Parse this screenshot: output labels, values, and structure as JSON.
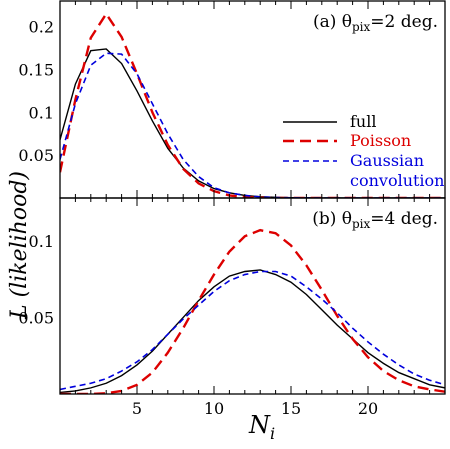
{
  "chart_data": [
    {
      "type": "line",
      "panel_label": "(a) θ",
      "panel_label_sub": "pix",
      "panel_label_tail": "=2 deg.",
      "xlim": [
        0,
        25
      ],
      "ylim": [
        0,
        0.23
      ],
      "yticks": [
        0.05,
        0.1,
        0.15,
        0.2
      ],
      "ytick_labels": [
        "0.05",
        "0.1",
        "0.15",
        "0.2"
      ],
      "legend_position": "right",
      "series": [
        {
          "name": "full",
          "color": "#000000",
          "style": "solid",
          "x": [
            0,
            1,
            2,
            3,
            4,
            5,
            6,
            7,
            8,
            9,
            10,
            11,
            12,
            13,
            14,
            15,
            16,
            17,
            18,
            19,
            20,
            21,
            22,
            23,
            24,
            25
          ],
          "y": [
            0.068,
            0.133,
            0.172,
            0.174,
            0.157,
            0.125,
            0.09,
            0.058,
            0.035,
            0.02,
            0.011,
            0.006,
            0.003,
            0.0015,
            0.0008,
            0.0004,
            0.0002,
            0.0001,
            0.0001,
            0,
            0,
            0,
            0,
            0,
            0,
            0
          ]
        },
        {
          "name": "Poisson",
          "color": "#dd0000",
          "style": "long-dash",
          "x": [
            0,
            1,
            2,
            3,
            4,
            5,
            6,
            7,
            8,
            9,
            10,
            11,
            12,
            13,
            14,
            15,
            16,
            17,
            18,
            19,
            20,
            21,
            22,
            23,
            24,
            25
          ],
          "y": [
            0.03,
            0.115,
            0.187,
            0.215,
            0.188,
            0.145,
            0.1,
            0.062,
            0.034,
            0.017,
            0.008,
            0.003,
            0.001,
            0.0004,
            0.0001,
            0,
            0,
            0,
            0,
            0,
            0,
            0,
            0,
            0,
            0,
            0
          ]
        },
        {
          "name": "Gaussian convolution",
          "color": "#0000dd",
          "style": "short-dash",
          "x": [
            0,
            1,
            2,
            3,
            4,
            5,
            6,
            7,
            8,
            9,
            10,
            11,
            12,
            13,
            14,
            15,
            16,
            17,
            18,
            19,
            20,
            21,
            22,
            23,
            24,
            25
          ],
          "y": [
            0.045,
            0.11,
            0.155,
            0.169,
            0.168,
            0.145,
            0.11,
            0.075,
            0.045,
            0.025,
            0.012,
            0.006,
            0.003,
            0.0012,
            0.0005,
            0.0002,
            0.0001,
            0,
            0,
            0,
            0,
            0,
            0,
            0,
            0,
            0
          ]
        }
      ],
      "legend": [
        {
          "label": "full",
          "color": "#000000",
          "style": "solid"
        },
        {
          "label": "Poisson",
          "color": "#dd0000",
          "style": "long-dash"
        },
        {
          "label": "Gaussian",
          "label2": "convolution",
          "color": "#0000dd",
          "style": "short-dash"
        }
      ]
    },
    {
      "type": "line",
      "panel_label": "(b) θ",
      "panel_label_sub": "pix",
      "panel_label_tail": "=4 deg.",
      "xlim": [
        0,
        25
      ],
      "ylim": [
        0,
        0.128
      ],
      "yticks": [
        0.05,
        0.1
      ],
      "ytick_labels": [
        "0.05",
        "0.1"
      ],
      "xticks": [
        5,
        10,
        15,
        20
      ],
      "xtick_labels": [
        "5",
        "10",
        "15",
        "20"
      ],
      "series": [
        {
          "name": "full",
          "color": "#000000",
          "style": "solid",
          "x": [
            0,
            1,
            2,
            3,
            4,
            5,
            6,
            7,
            8,
            9,
            10,
            11,
            12,
            13,
            14,
            15,
            16,
            17,
            18,
            19,
            20,
            21,
            22,
            23,
            24,
            25
          ],
          "y": [
            0.001,
            0.002,
            0.004,
            0.007,
            0.012,
            0.019,
            0.028,
            0.039,
            0.05,
            0.061,
            0.07,
            0.077,
            0.08,
            0.081,
            0.078,
            0.073,
            0.065,
            0.055,
            0.045,
            0.036,
            0.027,
            0.02,
            0.014,
            0.01,
            0.006,
            0.004
          ]
        },
        {
          "name": "Poisson",
          "color": "#dd0000",
          "style": "long-dash",
          "x": [
            0,
            1,
            2,
            3,
            4,
            5,
            6,
            7,
            8,
            9,
            10,
            11,
            12,
            13,
            14,
            15,
            16,
            17,
            18,
            19,
            20,
            21,
            22,
            23,
            24,
            25
          ],
          "y": [
            0,
            0,
            0,
            0.0005,
            0.002,
            0.006,
            0.014,
            0.027,
            0.043,
            0.061,
            0.078,
            0.093,
            0.103,
            0.107,
            0.105,
            0.097,
            0.084,
            0.068,
            0.051,
            0.036,
            0.024,
            0.015,
            0.009,
            0.005,
            0.003,
            0.0015
          ]
        },
        {
          "name": "Gaussian convolution",
          "color": "#0000dd",
          "style": "short-dash",
          "x": [
            0,
            1,
            2,
            3,
            4,
            5,
            6,
            7,
            8,
            9,
            10,
            11,
            12,
            13,
            14,
            15,
            16,
            17,
            18,
            19,
            20,
            21,
            22,
            23,
            24,
            25
          ],
          "y": [
            0.003,
            0.005,
            0.007,
            0.01,
            0.015,
            0.021,
            0.029,
            0.039,
            0.049,
            0.058,
            0.067,
            0.074,
            0.078,
            0.08,
            0.08,
            0.077,
            0.07,
            0.062,
            0.053,
            0.043,
            0.034,
            0.026,
            0.019,
            0.013,
            0.009,
            0.006
          ]
        }
      ]
    }
  ],
  "xlabel": "N",
  "xlabel_sub": "i",
  "ylabel": "L (likelihood)"
}
